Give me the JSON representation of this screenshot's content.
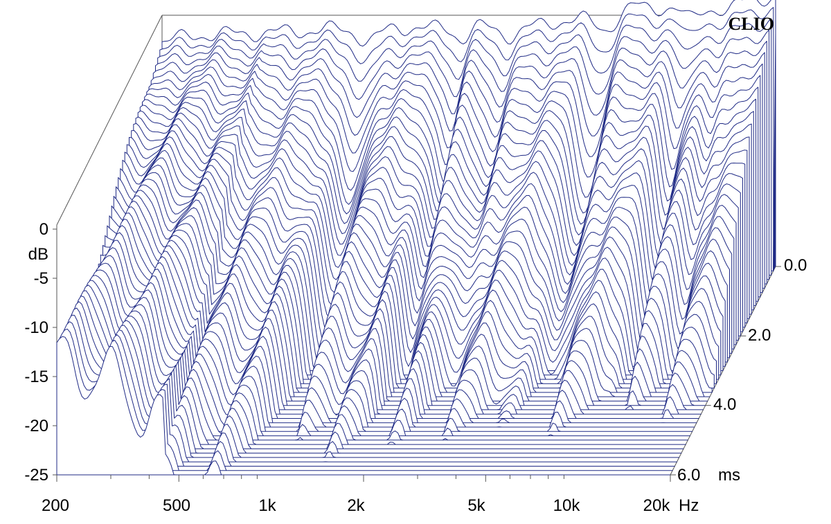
{
  "chart_data": {
    "type": "waterfall",
    "brand": "CLIO",
    "x_axis": {
      "scale": "log",
      "range": [
        200,
        20000
      ],
      "ticks": [
        {
          "value": 200,
          "label": "200"
        },
        {
          "value": 500,
          "label": "500"
        },
        {
          "value": 1000,
          "label": "1k"
        },
        {
          "value": 2000,
          "label": "2k"
        },
        {
          "value": 5000,
          "label": "5k"
        },
        {
          "value": 10000,
          "label": "10k"
        },
        {
          "value": 20000,
          "label": "20k"
        }
      ],
      "unit": "Hz"
    },
    "y_axis": {
      "label": "dB",
      "range": [
        -25,
        0
      ],
      "ticks": [
        {
          "value": 0,
          "label": "0"
        },
        {
          "value": -5,
          "label": "-5"
        },
        {
          "value": -10,
          "label": "-10"
        },
        {
          "value": -15,
          "label": "-15"
        },
        {
          "value": -20,
          "label": "-20"
        },
        {
          "value": -25,
          "label": "-25"
        }
      ]
    },
    "z_axis": {
      "unit": "ms",
      "range": [
        0,
        6
      ],
      "ticks": [
        {
          "value": 0,
          "label": "0.0"
        },
        {
          "value": 2,
          "label": "2.0"
        },
        {
          "value": 4,
          "label": "4.0"
        },
        {
          "value": 6,
          "label": "6.0"
        }
      ]
    },
    "slices": 48,
    "initial_response_db": [
      {
        "f": 200,
        "db": -1.5
      },
      {
        "f": 300,
        "db": -1.4
      },
      {
        "f": 450,
        "db": -1.2
      },
      {
        "f": 600,
        "db": -1.0
      },
      {
        "f": 800,
        "db": -0.8
      },
      {
        "f": 1000,
        "db": -0.5
      },
      {
        "f": 1500,
        "db": -0.8
      },
      {
        "f": 2000,
        "db": -0.6
      },
      {
        "f": 3000,
        "db": -0.8
      },
      {
        "f": 4000,
        "db": 0.0
      },
      {
        "f": 5500,
        "db": 0.5
      },
      {
        "f": 7000,
        "db": 1.5
      },
      {
        "f": 10000,
        "db": 1.2
      },
      {
        "f": 14000,
        "db": 1.4
      },
      {
        "f": 17000,
        "db": 2.5
      },
      {
        "f": 20000,
        "db": 2.2
      }
    ],
    "colors": {
      "line": "#1f2a85",
      "fill": "#1f2a85",
      "axis": "#555555"
    },
    "grid": false
  }
}
